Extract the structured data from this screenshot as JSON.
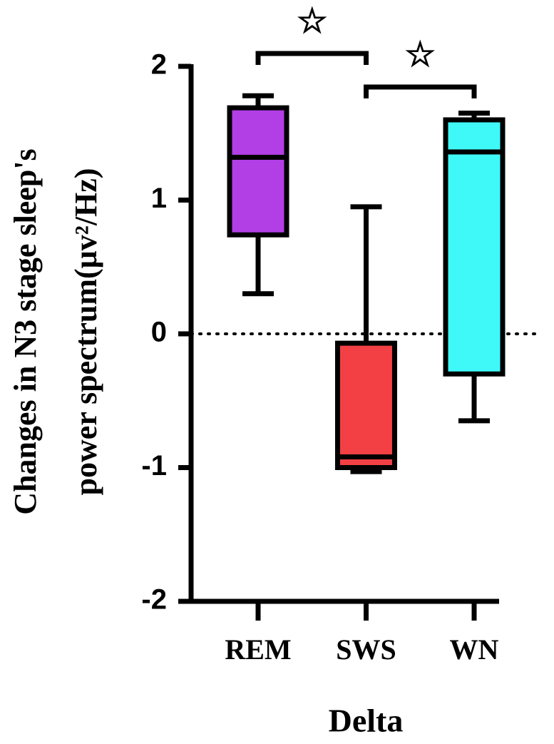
{
  "chart_data": {
    "type": "box",
    "y_label": [
      "Changes in N3 stage sleep's",
      "power spectrum(μv²/Hz)"
    ],
    "x_label": "Delta",
    "categories": [
      "REM",
      "SWS",
      "WN"
    ],
    "colors": [
      "#b23ee6",
      "#f24044",
      "#3ff8f8"
    ],
    "boxes": [
      {
        "min": 0.3,
        "q1": 0.74,
        "median": 1.32,
        "q3": 1.69,
        "max": 1.78
      },
      {
        "min": -1.03,
        "q1": -1.0,
        "median": -0.92,
        "q3": -0.07,
        "max": 0.95
      },
      {
        "min": -0.65,
        "q1": -0.3,
        "median": 1.36,
        "q3": 1.6,
        "max": 1.65
      }
    ],
    "ylim": [
      -2,
      2
    ],
    "yticks": [
      -2,
      -1,
      0,
      1,
      2
    ],
    "zero_line": true,
    "annotations": [
      "☆",
      "☆"
    ]
  }
}
